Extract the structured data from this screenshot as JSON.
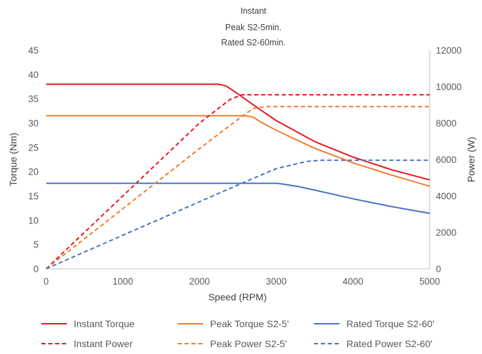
{
  "chart_data": {
    "type": "line",
    "title": [
      "Instant",
      "Peak S2-5min.",
      "Rated S2-60min."
    ],
    "xlabel": "Speed (RPM)",
    "ylabel_left": "Torque (Nm)",
    "ylabel_right": "Power (W)",
    "xlim": [
      0,
      5000
    ],
    "ylim_left": [
      0,
      45
    ],
    "ylim_right": [
      0,
      12000
    ],
    "x_ticks": [
      "0",
      "1000",
      "2000",
      "3000",
      "4000",
      "5000"
    ],
    "y_left_ticks": [
      "0",
      "5",
      "10",
      "15",
      "20",
      "25",
      "30",
      "35",
      "40",
      "45"
    ],
    "y_right_ticks": [
      "0",
      "2000",
      "4000",
      "6000",
      "8000",
      "10000",
      "12000"
    ],
    "grid": false,
    "legend_position": "bottom",
    "series": [
      {
        "name": "Instant Torque",
        "axis": "left",
        "style": "solid",
        "color": "#e8141c",
        "x": [
          0,
          2000,
          2150,
          2250,
          2350,
          2500,
          2750,
          3000,
          3500,
          4000,
          4500,
          5000
        ],
        "y": [
          38,
          38,
          38,
          38,
          37.6,
          36,
          33.2,
          30.5,
          26.2,
          23,
          20.4,
          18.3
        ]
      },
      {
        "name": "Peak Torque S2-5'",
        "axis": "left",
        "style": "solid",
        "color": "#f07c2a",
        "x": [
          0,
          2600,
          2700,
          2800,
          3000,
          3500,
          4000,
          4500,
          5000
        ],
        "y": [
          31.5,
          31.5,
          31.2,
          30.2,
          28.5,
          24.8,
          21.8,
          19.3,
          17
        ]
      },
      {
        "name": "Rated Torque S2-60'",
        "axis": "left",
        "style": "solid",
        "color": "#4472c4",
        "x": [
          0,
          2900,
          3000,
          3100,
          3300,
          3500,
          4000,
          4500,
          5000
        ],
        "y": [
          17.6,
          17.6,
          17.6,
          17.4,
          16.9,
          16.2,
          14.4,
          12.8,
          11.4
        ]
      },
      {
        "name": "Instant Power",
        "axis": "right",
        "style": "dashed",
        "color": "#e8141c",
        "x": [
          0,
          500,
          1000,
          1500,
          2000,
          2400,
          2550,
          2700,
          5000
        ],
        "y": [
          0,
          2000,
          4000,
          6000,
          8000,
          9300,
          9550,
          9550,
          9550
        ]
      },
      {
        "name": "Peak Power S2-5'",
        "axis": "right",
        "style": "dashed",
        "color": "#f07c2a",
        "x": [
          0,
          500,
          1000,
          1500,
          2000,
          2500,
          2700,
          2850,
          5000
        ],
        "y": [
          0,
          1650,
          3300,
          4950,
          6600,
          8200,
          8800,
          8900,
          8900
        ]
      },
      {
        "name": "Rated Power S2-60'",
        "axis": "right",
        "style": "dashed",
        "color": "#4472c4",
        "x": [
          0,
          500,
          1000,
          1500,
          2000,
          2500,
          3000,
          3400,
          3600,
          5000
        ],
        "y": [
          0,
          920,
          1840,
          2760,
          3680,
          4600,
          5500,
          5900,
          5960,
          5960
        ]
      }
    ]
  }
}
